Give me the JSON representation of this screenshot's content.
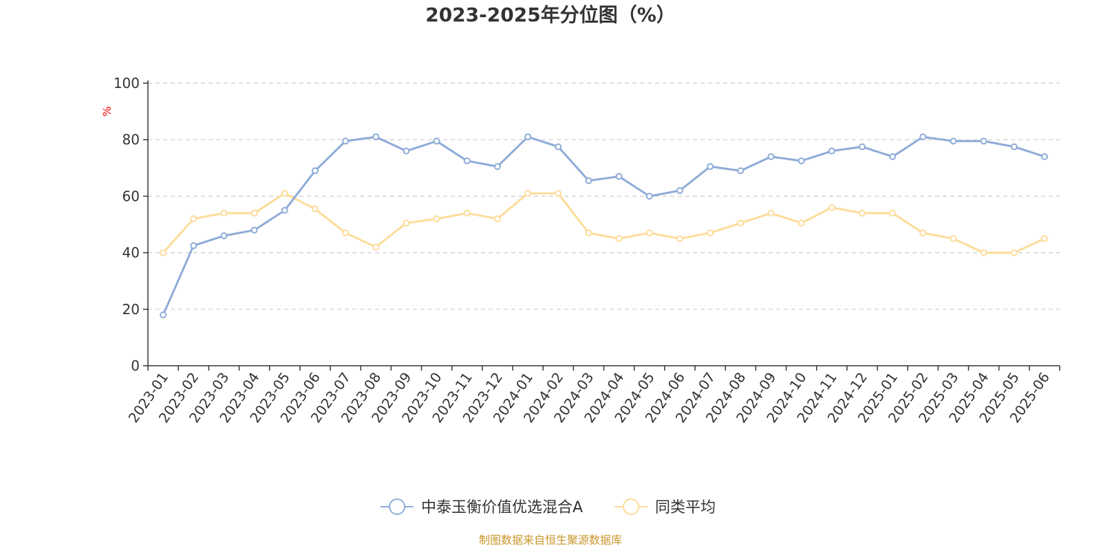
{
  "chart_data": {
    "type": "line",
    "title": "2023-2025年分位图（%）",
    "ylabel": "%",
    "xlabel": "",
    "ylim": [
      0,
      100
    ],
    "yticks": [
      0,
      20,
      40,
      60,
      80,
      100
    ],
    "grid": true,
    "legend_position": "bottom-center",
    "categories": [
      "2023-01",
      "2023-02",
      "2023-03",
      "2023-04",
      "2023-05",
      "2023-06",
      "2023-07",
      "2023-08",
      "2023-09",
      "2023-10",
      "2023-11",
      "2023-12",
      "2024-01",
      "2024-02",
      "2024-03",
      "2024-04",
      "2024-05",
      "2024-06",
      "2024-07",
      "2024-08",
      "2024-09",
      "2024-10",
      "2024-11",
      "2024-12",
      "2025-01",
      "2025-02",
      "2025-03",
      "2025-04",
      "2025-05",
      "2025-06"
    ],
    "series": [
      {
        "name": "中泰玉衡价值优选混合A",
        "color": "#8eabd8",
        "values": [
          18,
          42.5,
          46,
          48,
          55,
          69,
          79.5,
          81,
          76,
          79.5,
          72.5,
          70.5,
          81,
          77.5,
          65.5,
          67,
          60,
          62,
          70.5,
          69,
          74,
          72.5,
          76,
          77.5,
          74,
          81,
          79.5,
          79.5,
          77.5,
          74
        ]
      },
      {
        "name": "同类平均",
        "color": "#fddc9a",
        "values": [
          40,
          52,
          54,
          54,
          61,
          55.5,
          47,
          42,
          50.5,
          52,
          54,
          52,
          61,
          61,
          47,
          45,
          47,
          45,
          47,
          50.5,
          54,
          50.5,
          56,
          54,
          54,
          47,
          45,
          40,
          40,
          45
        ]
      }
    ]
  },
  "source_note": "制图数据来自恒生聚源数据库"
}
